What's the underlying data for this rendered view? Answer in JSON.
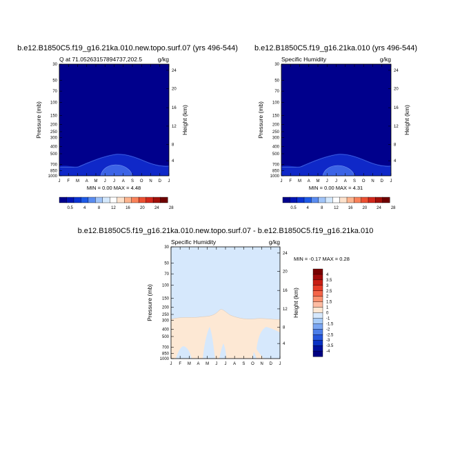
{
  "chart_data": [
    {
      "type": "contour",
      "title": "b.e12.B1850C5.f19_g16.21ka.010.new.topo.surf.07 (yrs 496-544)",
      "left_label": "Q at 71.05263157894737,202.5",
      "right_label": "g/kg",
      "ylabel": "Pressure (mb)",
      "ylabel_right": "Height (km)",
      "x_ticks": [
        "J",
        "F",
        "M",
        "A",
        "M",
        "J",
        "J",
        "A",
        "S",
        "O",
        "N",
        "D",
        "J"
      ],
      "y_ticks": [
        "30",
        "50",
        "70",
        "100",
        "150",
        "200",
        "250",
        "300",
        "400",
        "500",
        "700",
        "850",
        "1000"
      ],
      "y_ticks_right": [
        "24",
        "20",
        "16",
        "12",
        "8",
        "4"
      ],
      "ylim": [
        1000,
        30
      ],
      "min_max_text": "MIN =   0.00 MAX =   4.48",
      "colorbar_labels": [
        "0.5",
        "4",
        "8",
        "12",
        "16",
        "20",
        "24",
        "28"
      ]
    },
    {
      "type": "contour",
      "title": "b.e12.B1850C5.f19_g16.21ka.010 (yrs 496-544)",
      "left_label": "Specific Humidity",
      "right_label": "g/kg",
      "ylabel": "Pressure (mb)",
      "ylabel_right": "Height (km)",
      "x_ticks": [
        "J",
        "F",
        "M",
        "A",
        "M",
        "J",
        "J",
        "A",
        "S",
        "O",
        "N",
        "D",
        "J"
      ],
      "y_ticks": [
        "30",
        "50",
        "70",
        "100",
        "150",
        "200",
        "250",
        "300",
        "400",
        "500",
        "700",
        "850",
        "1000"
      ],
      "y_ticks_right": [
        "24",
        "20",
        "16",
        "12",
        "8",
        "4"
      ],
      "ylim": [
        1000,
        30
      ],
      "min_max_text": "MIN =   0.00 MAX =   4.31",
      "colorbar_labels": [
        "0.5",
        "4",
        "8",
        "12",
        "16",
        "20",
        "24",
        "28"
      ]
    },
    {
      "type": "contour",
      "title": "b.e12.B1850C5.f19_g16.21ka.010.new.topo.surf.07 - b.e12.B1850C5.f19_g16.21ka.010",
      "left_label": "Specific Humidity",
      "right_label": "g/kg",
      "ylabel": "Pressure (mb)",
      "ylabel_right": "Height (km)",
      "x_ticks": [
        "J",
        "F",
        "M",
        "A",
        "M",
        "J",
        "J",
        "A",
        "S",
        "O",
        "N",
        "D",
        "J"
      ],
      "y_ticks": [
        "30",
        "50",
        "70",
        "100",
        "150",
        "200",
        "250",
        "300",
        "400",
        "500",
        "700",
        "850",
        "1000"
      ],
      "y_ticks_right": [
        "24",
        "20",
        "16",
        "12",
        "8",
        "4"
      ],
      "ylim": [
        1000,
        30
      ],
      "min_max_text": "MIN =  -0.17 MAX =   0.28",
      "colorbar_labels": [
        "4",
        "3.5",
        "3",
        "2.5",
        "2",
        "1.5",
        "1",
        "0",
        "-1",
        "-1.5",
        "-2",
        "-2.5",
        "-3",
        "-3.5",
        "-4"
      ]
    }
  ],
  "colors": {
    "abs_fill_top": "#00008c",
    "abs_fill_mid": "#0f28c8",
    "abs_fill_low": "#3c64e6",
    "diff_positive": "#fde8d4",
    "diff_negative": "#d6e8fc",
    "abs_palette": [
      "#00008c",
      "#0014b4",
      "#0a32d2",
      "#1e5ae6",
      "#5a8cf0",
      "#a0c4f8",
      "#d4e8fc",
      "#ffffff",
      "#fde2cc",
      "#fcb48e",
      "#f9825a",
      "#ec5032",
      "#d2281c",
      "#a0100a",
      "#6e0000"
    ],
    "diff_palette": [
      "#780000",
      "#a00a0a",
      "#c81e14",
      "#e63c28",
      "#f46448",
      "#fa9270",
      "#fdbca2",
      "#fde8d4",
      "#d6e8fc",
      "#a8ccf8",
      "#7aa6f2",
      "#4c7ee8",
      "#2656dc",
      "#0a32c4",
      "#00109e",
      "#000082"
    ]
  }
}
